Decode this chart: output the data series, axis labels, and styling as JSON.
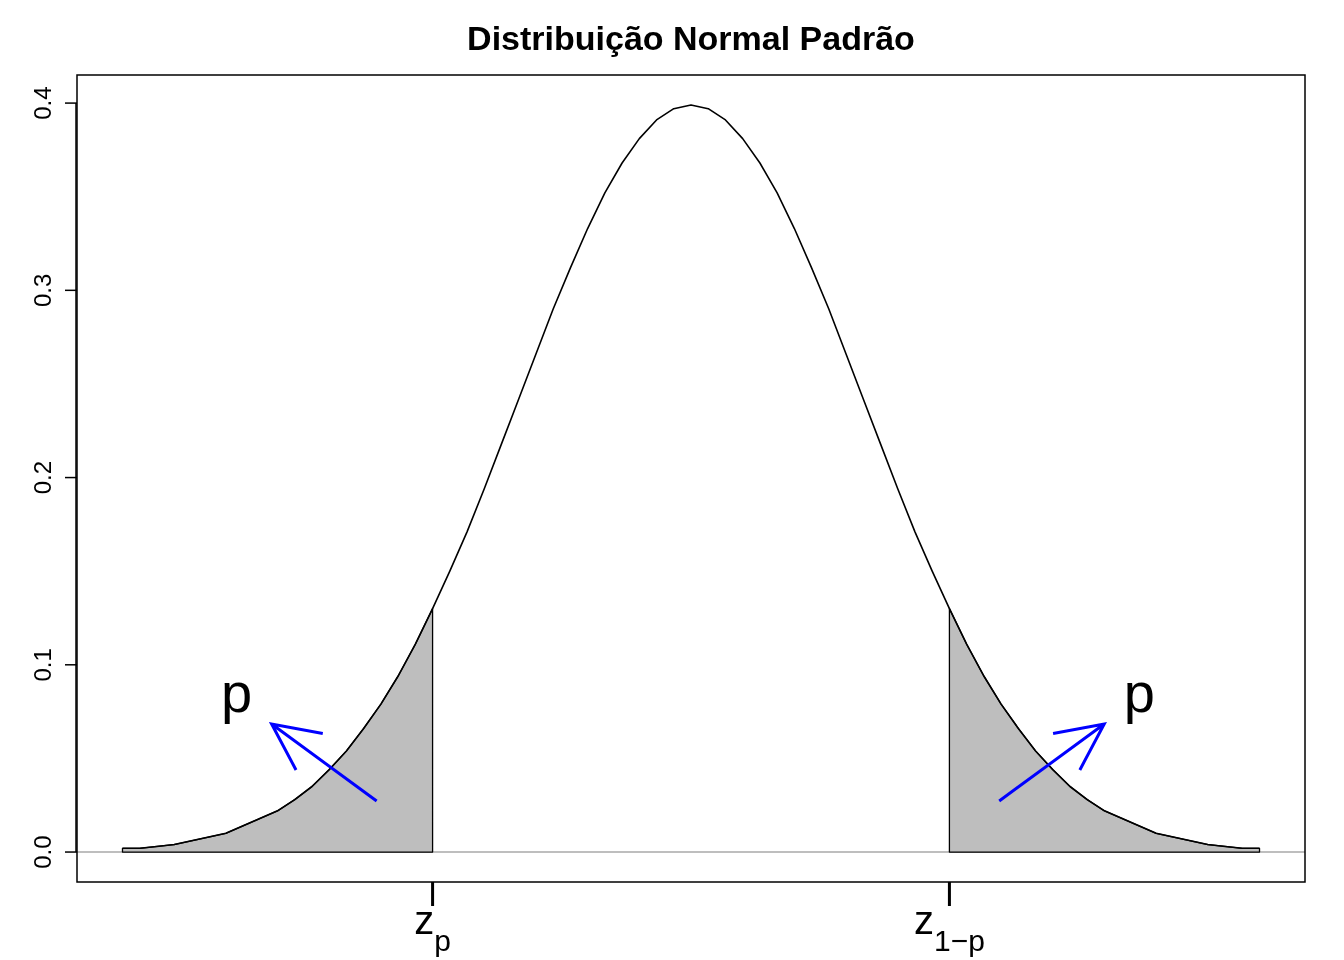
{
  "chart_data": {
    "type": "line",
    "title": "Distribuição Normal Padrão",
    "categories": [
      null,
      null,
      null,
      null,
      null,
      null,
      null,
      null,
      null,
      null,
      null,
      null,
      null,
      null,
      null,
      null,
      null,
      null,
      "z$_{p}$",
      null,
      null,
      null,
      null,
      null,
      null,
      null,
      null,
      null,
      null,
      null,
      null,
      null,
      null,
      null,
      null,
      null,
      null,
      null,
      null,
      null,
      null,
      null,
      null,
      null,
      null,
      null,
      null,
      null,
      "z$_{1−p}$",
      null,
      null,
      null,
      null,
      null,
      null,
      null,
      null,
      null,
      null,
      null,
      null,
      null,
      null,
      null,
      null,
      null,
      null
    ],
    "ylim": [
      -0.016,
      0.415
    ],
    "yticks": [
      {
        "value": 0,
        "label": "0.0"
      },
      0.1,
      0.2,
      0.3,
      0.4
    ],
    "grid": false,
    "marker": "none",
    "ref_lines": [
      {
        "axis": "y",
        "value": 0,
        "color": "#bebebe"
      }
    ],
    "annotations": [
      "p",
      "p"
    ],
    "series": [
      {
        "type": "area",
        "color": "#bebebe",
        "values": [
          0.002,
          0.002,
          0.003,
          0.004,
          0.006,
          0.008,
          0.01,
          0.014,
          0.018,
          0.022,
          0.028,
          0.035,
          0.044,
          0.054,
          0.066,
          0.079,
          0.094,
          0.111,
          0.13,
          null,
          null,
          null,
          null,
          null,
          null,
          null,
          null,
          null,
          null,
          null,
          null,
          null,
          null,
          null,
          null,
          null,
          null,
          null,
          null,
          null,
          null,
          null,
          null,
          null,
          null,
          null,
          null,
          null,
          null,
          null,
          null,
          null,
          null,
          null,
          null,
          null,
          null,
          null,
          null,
          null,
          null,
          null,
          null,
          null,
          null,
          null,
          null
        ]
      },
      {
        "type": "area",
        "color": "#bebebe",
        "values": [
          null,
          null,
          null,
          null,
          null,
          null,
          null,
          null,
          null,
          null,
          null,
          null,
          null,
          null,
          null,
          null,
          null,
          null,
          null,
          null,
          null,
          null,
          null,
          null,
          null,
          null,
          null,
          null,
          null,
          null,
          null,
          null,
          null,
          null,
          null,
          null,
          null,
          null,
          null,
          null,
          null,
          null,
          null,
          null,
          null,
          null,
          null,
          null,
          0.13,
          0.111,
          0.094,
          0.079,
          0.066,
          0.054,
          0.044,
          0.035,
          0.028,
          0.022,
          0.018,
          0.014,
          0.01,
          0.008,
          0.006,
          0.004,
          0.003,
          0.002,
          0.002
        ]
      },
      {
        "color": "#000000",
        "line_style": "solid",
        "values": [
          0.002,
          0.002,
          0.003,
          0.004,
          0.006,
          0.008,
          0.01,
          0.014,
          0.018,
          0.022,
          0.028,
          0.035,
          0.044,
          0.054,
          0.066,
          0.079,
          0.094,
          0.111,
          0.13,
          0.15,
          0.171,
          0.194,
          0.218,
          0.242,
          0.266,
          0.29,
          0.312,
          0.333,
          0.352,
          0.368,
          0.381,
          0.391,
          0.397,
          0.399,
          0.397,
          0.391,
          0.381,
          0.368,
          0.352,
          0.333,
          0.312,
          0.29,
          0.266,
          0.242,
          0.218,
          0.194,
          0.171,
          0.15,
          0.13,
          0.111,
          0.094,
          0.079,
          0.066,
          0.054,
          0.044,
          0.035,
          0.028,
          0.022,
          0.018,
          0.014,
          0.01,
          0.008,
          0.006,
          0.004,
          0.003,
          0.002,
          0.002
        ]
      }
    ]
  }
}
